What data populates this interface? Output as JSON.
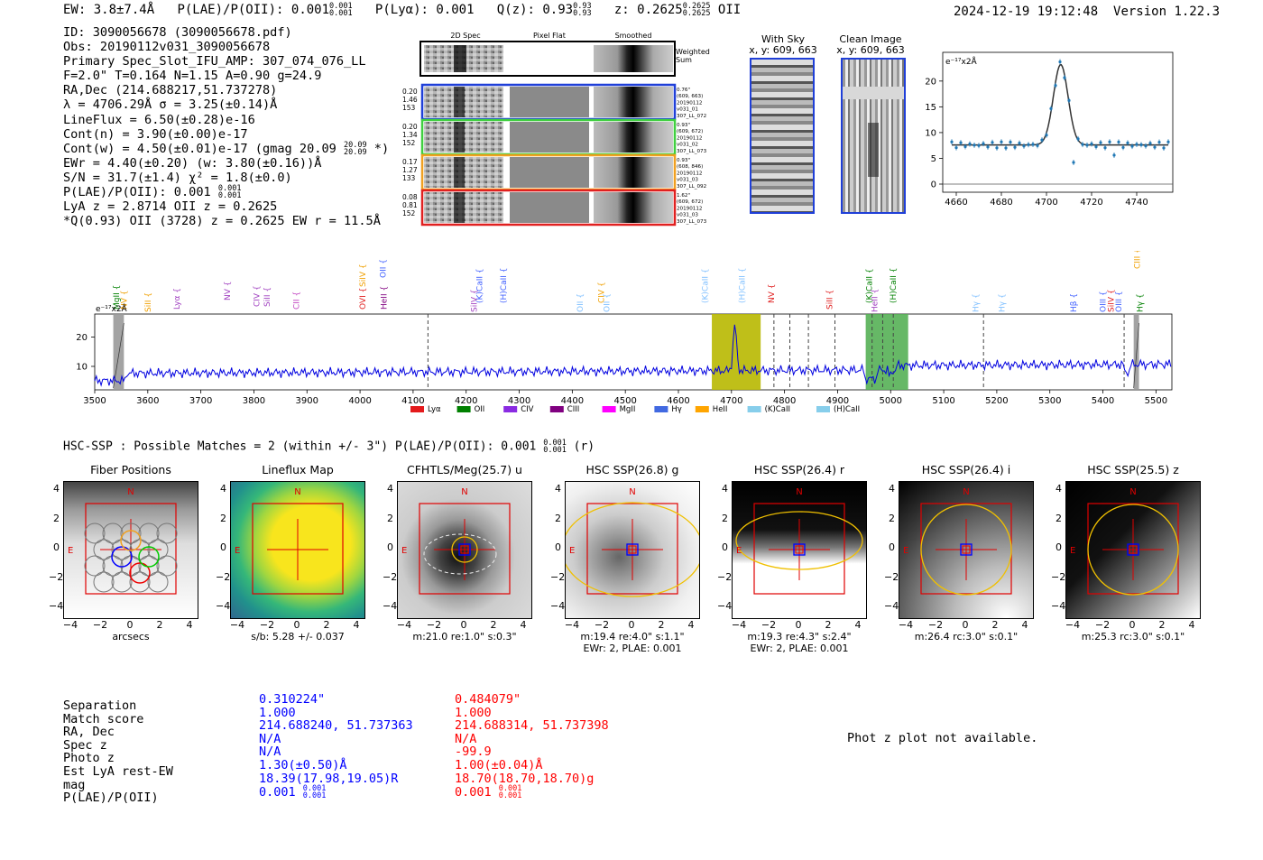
{
  "header": {
    "ew": "EW: 3.8±7.4Å",
    "plae_label": "P(LAE)/P(OII): 0.001",
    "plae_hi": "0.001",
    "plae_lo": "0.001",
    "plya": "P(Lyα): 0.001",
    "qz_label": "Q(z): 0.93",
    "qz_hi": "0.93",
    "qz_lo": "0.93",
    "z_label": "z: 0.2625",
    "z_hi": "0.2625",
    "z_lo": "0.2625",
    "z_line": "OII",
    "timestamp": "2024-12-19 19:12:48",
    "version": "Version 1.22.3"
  },
  "info": {
    "id": "ID: 3090056678 (3090056678.pdf)",
    "obs": "Obs: 20190112v031_3090056678",
    "primary": "Primary Spec_Slot_IFU_AMP: 307_074_076_LL",
    "f_line": "F=2.0\"  T=0.164  N=1.15  A=0.90  g=24.9",
    "radec": "RA,Dec (214.688217,51.737278)",
    "lambda": "λ = 4706.29Å  σ = 3.25(±0.14)Å",
    "lineflux": "LineFlux = 6.50(±0.28)e-16",
    "contn": "Cont(n) = 3.90(±0.00)e-17",
    "contw": "Cont(w) = 4.50(±0.01)e-17 (gmag 20.09",
    "contw_hi": "20.09",
    "contw_lo": "20.09",
    "contw_end": "*)",
    "ewr": "EWr = 4.40(±0.20) (w: 3.80(±0.16))Å",
    "sn": "S/N = 31.7(±1.4)  χ² = 1.8(±0.0)",
    "plae": "P(LAE)/P(OII): 0.001",
    "plae_hi": "0.001",
    "plae_lo": "0.001",
    "lya": "LyA z = 2.8714  OII z = 0.2625",
    "q": "*Q(0.93) OII (3728) z = 0.2625  EW r = 11.5Å"
  },
  "spec2d": {
    "col_headers": [
      "2D Spec",
      "Pixel Flat",
      "Smoothed"
    ],
    "weighted_sum": [
      "Weighted",
      "Sum"
    ],
    "rows": [
      {
        "left": [
          "0.20",
          "1.46",
          "153"
        ],
        "right": [
          "0.76\"",
          "(609, 663)",
          "20190112",
          "v031_01",
          "307_LL_072"
        ],
        "color": "#1f3fd8"
      },
      {
        "left": [
          "0.20",
          "1.34",
          "152"
        ],
        "right": [
          "0.93\"",
          "(609, 672)",
          "20190112",
          "v031_02",
          "307_LL_073"
        ],
        "color": "#3fcf3f"
      },
      {
        "left": [
          "0.17",
          "1.27",
          "133"
        ],
        "right": [
          "0.93\"",
          "(608, 846)",
          "20190112",
          "v031_03",
          "307_LL_092"
        ],
        "color": "#f0a020"
      },
      {
        "left": [
          "0.08",
          "0.81",
          "152"
        ],
        "right": [
          "1.62\"",
          "(609, 672)",
          "20190112",
          "v031_03",
          "307_LL_073"
        ],
        "color": "#e02020"
      }
    ]
  },
  "sky": {
    "with_sky_title": "With Sky",
    "with_sky_coords": "x, y: 609, 663",
    "clean_title": "Clean Image",
    "clean_coords": "x, y: 609, 663"
  },
  "zoom_plot": {
    "ylabel": "e⁻¹⁷x2Å",
    "xticks": [
      "4660",
      "4680",
      "4700",
      "4720",
      "4740"
    ],
    "yticks": [
      "0",
      "5",
      "10",
      "15",
      "20"
    ]
  },
  "full_spectrum": {
    "ylabel": "e⁻¹⁷x2Å",
    "yticks": [
      "10",
      "20"
    ],
    "xticks": [
      "3500",
      "3600",
      "3700",
      "3800",
      "3900",
      "4000",
      "4100",
      "4200",
      "4300",
      "4400",
      "4500",
      "4600",
      "4700",
      "4800",
      "4900",
      "5000",
      "5100",
      "5200",
      "5300",
      "5400",
      "5500"
    ],
    "line_labels": [
      {
        "text": "MgII",
        "color": "#008000"
      },
      {
        "text": "NV",
        "color": "#f0a000"
      },
      {
        "text": "SiII",
        "color": "#f0a000"
      },
      {
        "text": "Lyα",
        "color": "#a040c0"
      },
      {
        "text": "NV",
        "color": "#a040c0"
      },
      {
        "text": "CIV",
        "color": "#a040c0"
      },
      {
        "text": "SiII",
        "color": "#a040c0"
      },
      {
        "text": "CII",
        "color": "#c040c0"
      },
      {
        "text": "SiIV",
        "color": "#f0a000"
      },
      {
        "text": "OVI",
        "color": "#e02020"
      },
      {
        "text": "OII",
        "color": "#4060ff"
      },
      {
        "text": "HeII",
        "color": "#800080"
      },
      {
        "text": "SiIV",
        "color": "#a040c0"
      },
      {
        "text": "(K)CaII",
        "color": "#4060ff"
      },
      {
        "text": "(H)CaII",
        "color": "#4060ff"
      },
      {
        "text": "OII",
        "color": "#80c0ff"
      },
      {
        "text": "CIV",
        "color": "#f0a000"
      },
      {
        "text": "OII",
        "color": "#80c0ff"
      },
      {
        "text": "(K)CaII",
        "color": "#80c0ff"
      },
      {
        "text": "(H)CaII",
        "color": "#80c0ff"
      },
      {
        "text": "NV",
        "color": "#e02020"
      },
      {
        "text": "SiII",
        "color": "#e02020"
      },
      {
        "text": "(K)CaII",
        "color": "#008000"
      },
      {
        "text": "HeII",
        "color": "#a040c0"
      },
      {
        "text": "(H)CaII",
        "color": "#008000"
      },
      {
        "text": "Hγ",
        "color": "#80c0ff"
      },
      {
        "text": "Hγ",
        "color": "#80c0ff"
      },
      {
        "text": "Hβ",
        "color": "#4060ff"
      },
      {
        "text": "OIII",
        "color": "#4060ff"
      },
      {
        "text": "SiIV",
        "color": "#e02020"
      },
      {
        "text": "OIII",
        "color": "#4060ff"
      },
      {
        "text": "CIII",
        "color": "#f0a000"
      },
      {
        "text": "Hγ",
        "color": "#008000"
      }
    ],
    "legend": [
      {
        "text": "Lyα",
        "color": "#e41a1c"
      },
      {
        "text": "OII",
        "color": "#008000"
      },
      {
        "text": "CIV",
        "color": "#8a2be2"
      },
      {
        "text": "CIII",
        "color": "#800080"
      },
      {
        "text": "MgII",
        "color": "#ff00ff"
      },
      {
        "text": "Hγ",
        "color": "#4169e1"
      },
      {
        "text": "HeII",
        "color": "#ffa500"
      },
      {
        "text": "(K)CaII",
        "color": "#87ceeb"
      },
      {
        "text": "(H)CaII",
        "color": "#87ceeb"
      }
    ]
  },
  "hsc": {
    "title": "HSC-SSP : Possible Matches = 2 (within +/- 3\")  P(LAE)/P(OII): 0.001",
    "title_hi": "0.001",
    "title_lo": "0.001",
    "title_end": "(r)"
  },
  "cutouts": [
    {
      "title": "Fiber Positions",
      "caption": [
        "arcsecs"
      ]
    },
    {
      "title": "Lineflux Map",
      "caption": [
        "s/b: 5.28 +/- 0.037"
      ]
    },
    {
      "title": "CFHTLS/Meg(25.7) u",
      "caption": [
        "m:21.0  re:1.0\"  s:0.3\""
      ]
    },
    {
      "title": "HSC SSP(26.8) g",
      "caption": [
        "m:19.4  re:4.0\"  s:1.1\"",
        "EWr: 2, PLAE: 0.001"
      ]
    },
    {
      "title": "HSC SSP(26.4) r",
      "caption": [
        "m:19.3  re:4.3\"  s:2.4\"",
        "EWr: 2, PLAE: 0.001"
      ]
    },
    {
      "title": "HSC SSP(26.4) i",
      "caption": [
        "m:26.4 rc:3.0\"  s:0.1\""
      ]
    },
    {
      "title": "HSC SSP(25.5) z",
      "caption": [
        "m:25.3 rc:3.0\"  s:0.1\""
      ]
    }
  ],
  "cutout_axes": {
    "yticks": [
      "4",
      "2",
      "0",
      "−2",
      "−4"
    ],
    "xticks": [
      "−4",
      "−2",
      "0",
      "2",
      "4"
    ],
    "north": "N",
    "east": "E"
  },
  "matches": {
    "labels": [
      "Separation",
      "Match score",
      "RA, Dec",
      "Spec z",
      "Photo z",
      "Est LyA rest-EW",
      "mag",
      "P(LAE)/P(OII)"
    ],
    "blue": [
      "0.310224\"",
      "1.000",
      "214.688240, 51.737363",
      "N/A",
      "N/A",
      "1.30(±0.50)Å",
      "18.39(17.98,19.05)R",
      "0.001"
    ],
    "blue_plae_hi": "0.001",
    "blue_plae_lo": "0.001",
    "red": [
      "0.484079\"",
      "1.000",
      "214.688314, 51.737398",
      "N/A",
      "-99.9",
      "1.00(±0.04)Å",
      "18.70(18.70,18.70)g",
      "0.001"
    ],
    "red_plae_hi": "0.001",
    "red_plae_lo": "0.001",
    "phot_z_note": "Phot z plot not available."
  }
}
